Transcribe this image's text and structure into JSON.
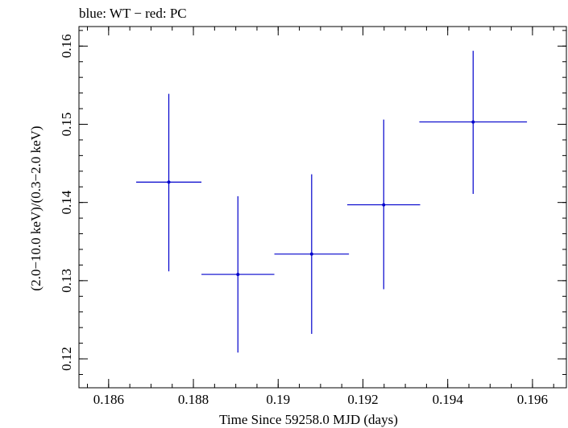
{
  "chart_data": {
    "type": "scatter",
    "title": "blue: WT − red: PC",
    "xlabel": "Time Since 59258.0 MJD (days)",
    "ylabel": "(2.0−10.0 keV)/(0.3−2.0 keV)",
    "xlim": [
      0.1853,
      0.1968
    ],
    "ylim": [
      0.1163,
      0.1625
    ],
    "x_ticks": [
      0.186,
      0.188,
      0.19,
      0.192,
      0.194,
      0.196
    ],
    "x_tick_labels": [
      "0.186",
      "0.188",
      "0.19",
      "0.192",
      "0.194",
      "0.196"
    ],
    "y_ticks": [
      0.12,
      0.13,
      0.14,
      0.15,
      0.16
    ],
    "y_tick_labels": [
      "0.12",
      "0.13",
      "0.14",
      "0.15",
      "0.16"
    ],
    "series": [
      {
        "name": "WT",
        "color": "#0000cc",
        "points": [
          {
            "x": 0.18742,
            "y": 0.1426,
            "xerr": 0.00077,
            "yerr_low": 0.0114,
            "yerr_high": 0.0113
          },
          {
            "x": 0.18905,
            "y": 0.1308,
            "xerr": 0.00086,
            "yerr_low": 0.01,
            "yerr_high": 0.01
          },
          {
            "x": 0.19079,
            "y": 0.1334,
            "xerr": 0.00088,
            "yerr_low": 0.0102,
            "yerr_high": 0.0102
          },
          {
            "x": 0.19249,
            "y": 0.1397,
            "xerr": 0.00086,
            "yerr_low": 0.0108,
            "yerr_high": 0.0109
          },
          {
            "x": 0.1946,
            "y": 0.1503,
            "xerr": 0.00127,
            "yerr_low": 0.0092,
            "yerr_high": 0.0091
          }
        ]
      }
    ]
  }
}
